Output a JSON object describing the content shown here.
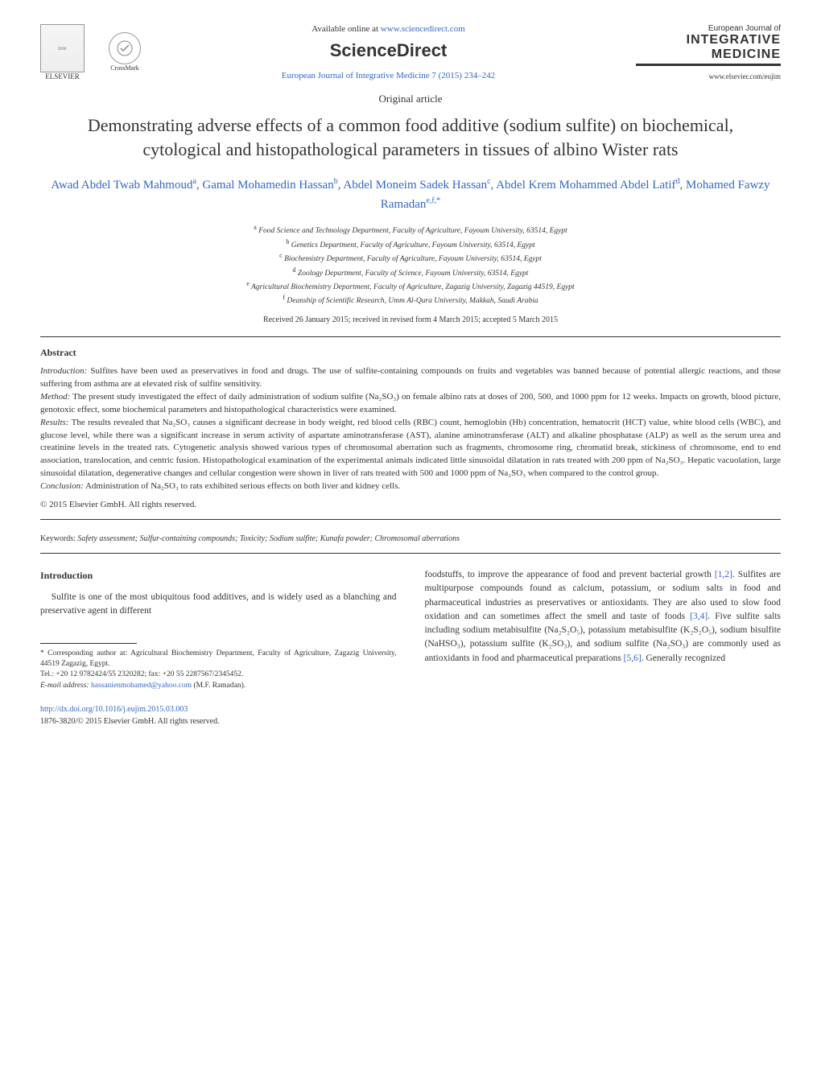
{
  "header": {
    "publisher_name": "ELSEVIER",
    "crossmark_label": "CrossMark",
    "available_prefix": "Available online at ",
    "available_url": "www.sciencedirect.com",
    "brand": "ScienceDirect",
    "journal_ref": "European Journal of Integrative Medicine 7 (2015) 234–242",
    "journal_line1": "European Journal of",
    "journal_line2": "INTEGRATIVE",
    "journal_line3": "MEDICINE",
    "journal_url": "www.elsevier.com/eujim"
  },
  "article": {
    "type": "Original article",
    "title": "Demonstrating adverse effects of a common food additive (sodium sulfite) on biochemical, cytological and histopathological parameters in tissues of albino Wister rats",
    "authors_html": "Awad Abdel Twab Mahmoud<sup>a</sup>, Gamal Mohamedin Hassan<sup>b</sup>, Abdel Moneim Sadek Hassan<sup>c</sup>, Abdel Krem Mohammed Abdel Latif<sup>d</sup>, Mohamed Fawzy Ramadan<sup>e,f,*</sup>",
    "affiliations": [
      {
        "sup": "a",
        "text": "Food Science and Technology Department, Faculty of Agriculture, Fayoum University, 63514, Egypt"
      },
      {
        "sup": "b",
        "text": "Genetics Department, Faculty of Agriculture, Fayoum University, 63514, Egypt"
      },
      {
        "sup": "c",
        "text": "Biochemistry Department, Faculty of Agriculture, Fayoum University, 63514, Egypt"
      },
      {
        "sup": "d",
        "text": "Zoology Department, Faculty of Science, Fayoum University, 63514, Egypt"
      },
      {
        "sup": "e",
        "text": "Agricultural Biochemistry Department, Faculty of Agriculture, Zagazig University, Zagazig 44519, Egypt"
      },
      {
        "sup": "f",
        "text": "Deanship of Scientific Research, Umm Al-Qura University, Makkah, Saudi Arabia"
      }
    ],
    "dates": "Received 26 January 2015; received in revised form 4 March 2015; accepted 5 March 2015"
  },
  "abstract": {
    "heading": "Abstract",
    "intro_label": "Introduction:",
    "intro": "Sulfites have been used as preservatives in food and drugs. The use of sulfite-containing compounds on fruits and vegetables was banned because of potential allergic reactions, and those suffering from asthma are at elevated risk of sulfite sensitivity.",
    "method_label": "Method:",
    "method": "The present study investigated the effect of daily administration of sodium sulfite (Na₂SO₃) on female albino rats at doses of 200, 500, and 1000 ppm for 12 weeks. Impacts on growth, blood picture, genotoxic effect, some biochemical parameters and histopathological characteristics were examined.",
    "results_label": "Results:",
    "results": "The results revealed that Na₂SO₃ causes a significant decrease in body weight, red blood cells (RBC) count, hemoglobin (Hb) concentration, hematocrit (HCT) value, white blood cells (WBC), and glucose level, while there was a significant increase in serum activity of aspartate aminotransferase (AST), alanine aminotransferase (ALT) and alkaline phosphatase (ALP) as well as the serum urea and creatinine levels in the treated rats. Cytogenetic analysis showed various types of chromosomal aberration such as fragments, chromosome ring, chromatid break, stickiness of chromosome, end to end association, translocation, and centric fusion. Histopathological examination of the experimental animals indicated little sinusoidal dilatation in rats treated with 200 ppm of Na₂SO₃. Hepatic vacuolation, large sinusoidal dilatation, degenerative changes and cellular congestion were shown in liver of rats treated with 500 and 1000 ppm of Na₂SO₃ when compared to the control group.",
    "conclusion_label": "Conclusion:",
    "conclusion": "Administration of Na₂SO₃ to rats exhibited serious effects on both liver and kidney cells.",
    "copyright": "© 2015 Elsevier GmbH. All rights reserved."
  },
  "keywords": {
    "label": "Keywords:",
    "text": "Safety assessment; Sulfur-containing compounds; Toxicity; Sodium sulfite; Kunafa powder; Chromosomal aberrations"
  },
  "body": {
    "section_heading": "Introduction",
    "left_para": "Sulfite is one of the most ubiquitous food additives, and is widely used as a blanching and preservative agent in different",
    "right_para_pre": "foodstuffs, to improve the appearance of food and prevent bacterial growth ",
    "right_cite1": "[1,2]",
    "right_para_mid1": ". Sulfites are multipurpose compounds found as calcium, potassium, or sodium salts in food and pharmaceutical industries as preservatives or antioxidants. They are also used to slow food oxidation and can sometimes affect the smell and taste of foods ",
    "right_cite2": "[3,4]",
    "right_para_mid2": ". Five sulfite salts including sodium metabisulfite (Na₂S₂O₅), potassium metabisulfite (K₂S₂O₅), sodium bisulfite (NaHSO₃), potassium sulfite (K₂SO₃), and sodium sulfite (Na₂SO₃) are commonly used as antioxidants in food and pharmaceutical preparations ",
    "right_cite3": "[5,6]",
    "right_para_end": ". Generally recognized"
  },
  "footnote": {
    "corr_label": "* Corresponding author at: ",
    "corr_text": "Agricultural Biochemistry Department, Faculty of Agriculture, Zagazig University, 44519 Zagazig, Egypt.",
    "tel": "Tel.: +20 12 9782424/55 2320282; fax: +20 55 2287567/2345452.",
    "email_label": "E-mail address: ",
    "email": "hassanienmohamed@yahoo.com",
    "email_suffix": " (M.F. Ramadan)."
  },
  "footer": {
    "doi": "http://dx.doi.org/10.1016/j.eujim.2015.03.003",
    "issn": "1876-3820/© 2015 Elsevier GmbH. All rights reserved."
  },
  "colors": {
    "link": "#3366cc",
    "text": "#333333",
    "rule": "#333333"
  }
}
